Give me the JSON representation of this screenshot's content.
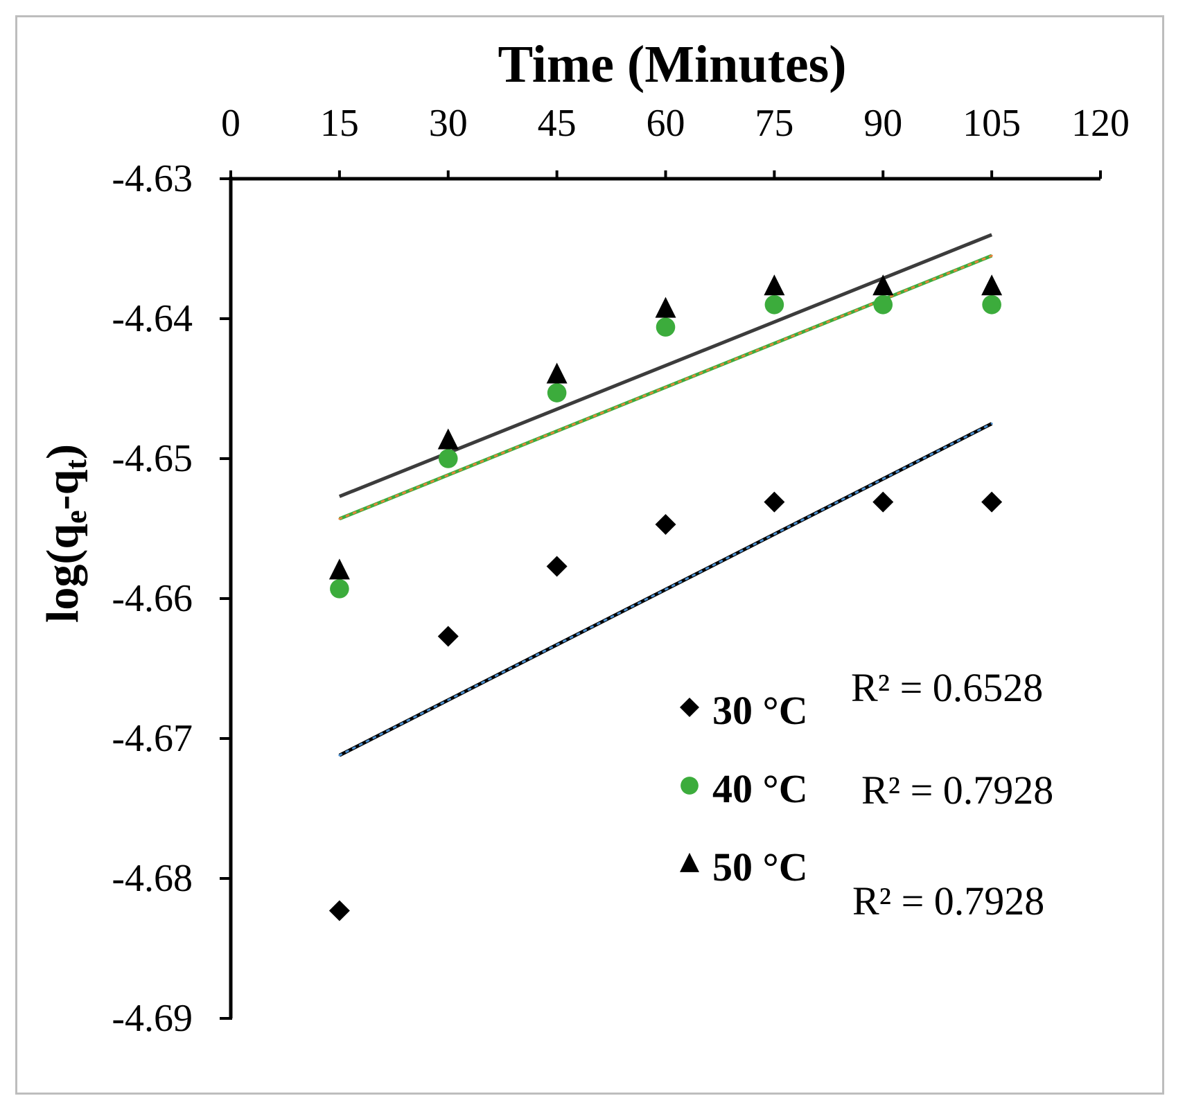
{
  "chart_data": {
    "type": "scatter",
    "title": "Time (Minutes)",
    "xlabel": "Time (Minutes)",
    "ylabel": "log(q_e-q_t)",
    "ylabel_parts": {
      "pre": "log(q",
      "sub1": "e",
      "mid": "-q",
      "sub2": "t",
      "post": ")"
    },
    "xlim": [
      0,
      120
    ],
    "ylim": [
      -4.69,
      -4.63
    ],
    "x_ticks": [
      0,
      15,
      30,
      45,
      60,
      75,
      90,
      105,
      120
    ],
    "x_tick_labels": [
      "0",
      "15",
      "30",
      "45",
      "60",
      "75",
      "90",
      "105",
      "120"
    ],
    "y_ticks": [
      -4.63,
      -4.64,
      -4.65,
      -4.66,
      -4.67,
      -4.68,
      -4.69
    ],
    "y_tick_labels": [
      "-4.63",
      "-4.64",
      "-4.65",
      "-4.66",
      "-4.67",
      "-4.68",
      "-4.69"
    ],
    "x_axis_position": "top",
    "grid": false,
    "legend_position": "bottom-right",
    "series": [
      {
        "name": "30 °C",
        "marker": "diamond",
        "color": "#000000",
        "x": [
          15,
          30,
          45,
          60,
          75,
          90,
          105
        ],
        "y": [
          -4.6823,
          -4.6627,
          -4.6577,
          -4.6547,
          -4.6531,
          -4.6531,
          -4.6531
        ],
        "trendline": {
          "x": [
            15,
            105
          ],
          "y": [
            -4.6712,
            -4.6475
          ],
          "color": "#000000",
          "accent": "#4a8fd0"
        },
        "r2_label": "R² = 0.6528"
      },
      {
        "name": "40 °C",
        "marker": "circle",
        "color": "#3cac3c",
        "x": [
          15,
          30,
          45,
          60,
          75,
          90,
          105
        ],
        "y": [
          -4.6593,
          -4.65,
          -4.6453,
          -4.6406,
          -4.639,
          -4.639,
          -4.639
        ],
        "trendline": {
          "x": [
            15,
            105
          ],
          "y": [
            -4.6543,
            -4.6355
          ],
          "color": "#3cac3c",
          "accent": "#e8823c"
        },
        "r2_label": "R² = 0.7928"
      },
      {
        "name": "50 °C",
        "marker": "triangle",
        "color": "#000000",
        "x": [
          15,
          30,
          45,
          60,
          75,
          90,
          105
        ],
        "y": [
          -4.658,
          -4.6487,
          -4.644,
          -4.6393,
          -4.6377,
          -4.6377,
          -4.6377
        ],
        "trendline": {
          "x": [
            15,
            105
          ],
          "y": [
            -4.6527,
            -4.634
          ],
          "color": "#3c3c3c"
        },
        "r2_label": "R² = 0.7928"
      }
    ]
  }
}
